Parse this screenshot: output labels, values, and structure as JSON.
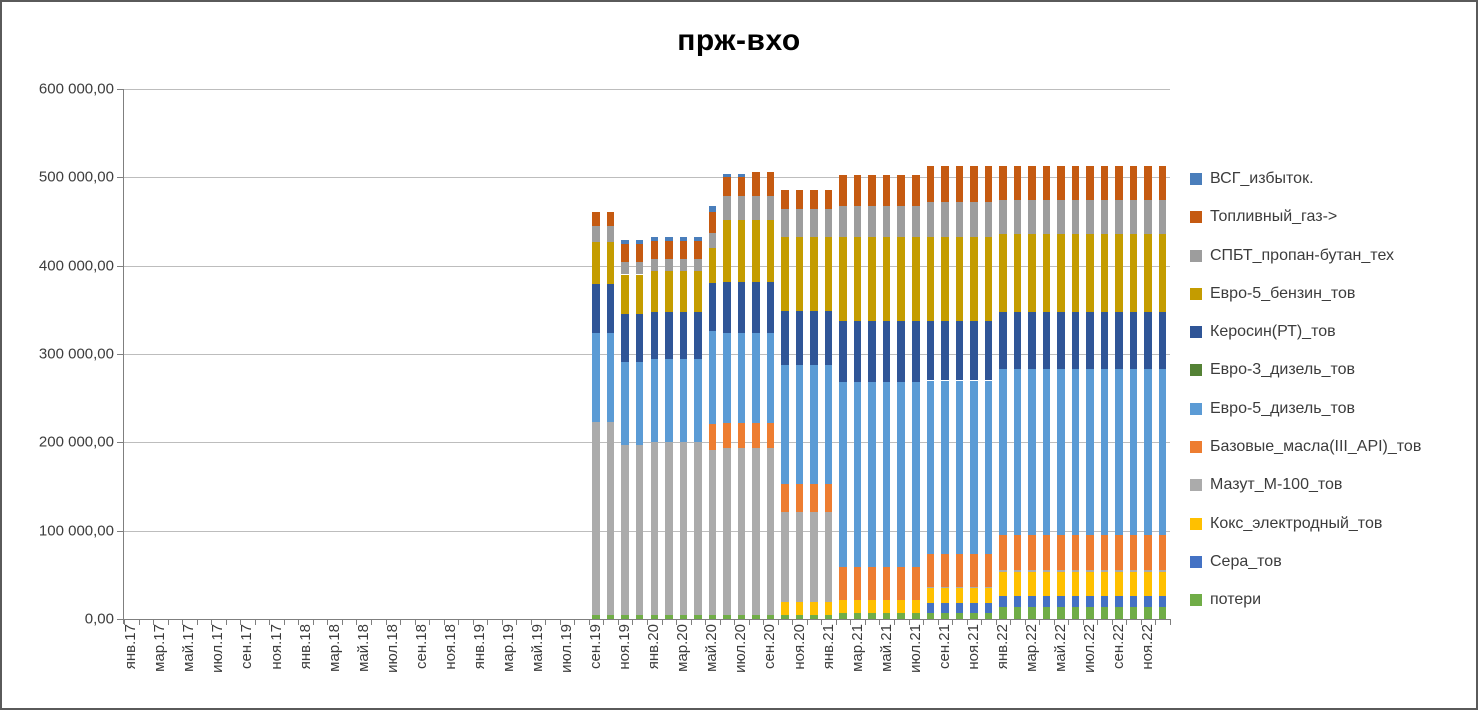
{
  "title": "прж-вхо",
  "y_axis": {
    "labels": [
      "0,00",
      "100 000,00",
      "200 000,00",
      "300 000,00",
      "400 000,00",
      "500 000,00",
      "600 000,00"
    ],
    "values": [
      0,
      100000,
      200000,
      300000,
      400000,
      500000,
      600000
    ],
    "max": 600000
  },
  "x_axis": {
    "tick_labels": [
      "янв.17",
      "мар.17",
      "май.17",
      "июл.17",
      "сен.17",
      "ноя.17",
      "янв.18",
      "мар.18",
      "май.18",
      "июл.18",
      "сен.18",
      "ноя.18",
      "янв.19",
      "мар.19",
      "май.19",
      "июл.19",
      "сен.19",
      "ноя.19",
      "янв.20",
      "мар.20",
      "май.20",
      "июл.20",
      "сен.20",
      "ноя.20",
      "янв.21",
      "мар.21",
      "май.21",
      "июл.21",
      "сен.21",
      "ноя.21",
      "янв.22",
      "мар.22",
      "май.22",
      "июл.22",
      "сен.22",
      "ноя.22"
    ],
    "label_every_n_slots": 2
  },
  "legend": [
    {
      "name": "ВСГ_избыток.",
      "color": "#4a7ebb"
    },
    {
      "name": "Топливный_газ->",
      "color": "#c55a11"
    },
    {
      "name": "СПБТ_пропан-бутан_тех",
      "color": "#9d9d9d"
    },
    {
      "name": "Евро-5_бензин_тов",
      "color": "#c49c00"
    },
    {
      "name": "Керосин(РТ)_тов",
      "color": "#2f5597"
    },
    {
      "name": "Евро-3_дизель_тов",
      "color": "#548235"
    },
    {
      "name": "Евро-5_дизель_тов",
      "color": "#5b9bd5"
    },
    {
      "name": "Базовые_масла(III_API)_тов",
      "color": "#ed7d31"
    },
    {
      "name": "Мазут_М-100_тов",
      "color": "#ababab"
    },
    {
      "name": "Кокс_электродный_тов",
      "color": "#ffc000"
    },
    {
      "name": "Сера_тов",
      "color": "#4472c4"
    },
    {
      "name": "потери",
      "color": "#70ad47"
    }
  ],
  "chart_data": {
    "type": "bar",
    "stacked": true,
    "title": "прж-вхо",
    "xlabel": "",
    "ylabel": "",
    "ylim": [
      0,
      600000
    ],
    "y_tick_step": 100000,
    "grid": true,
    "legend_position": "right",
    "total_slots": 72,
    "slot_range": "янв.17 — дек.22 (monthly)",
    "first_bar_slot_index": 32,
    "bar_months": [
      "сен.19",
      "окт.19",
      "ноя.19",
      "дек.19",
      "янв.20",
      "фев.20",
      "мар.20",
      "апр.20",
      "май.20",
      "июн.20",
      "июл.20",
      "авг.20",
      "сен.20",
      "окт.20",
      "ноя.20",
      "дек.20",
      "янв.21",
      "фев.21",
      "мар.21",
      "апр.21",
      "май.21",
      "июн.21",
      "июл.21",
      "авг.21",
      "сен.21",
      "окт.21",
      "ноя.21",
      "дек.21",
      "янв.22",
      "фев.22",
      "мар.22",
      "апр.22",
      "май.22",
      "июн.22",
      "июл.22",
      "авг.22",
      "сен.22",
      "окт.22",
      "ноя.22",
      "дек.22"
    ],
    "series": [
      {
        "name": "потери",
        "color": "#70ad47",
        "values": [
          5000,
          5000,
          5000,
          5000,
          5000,
          5000,
          5000,
          5000,
          5000,
          5000,
          5000,
          5000,
          5000,
          4000,
          4000,
          4000,
          4000,
          7000,
          7000,
          7000,
          7000,
          7000,
          7000,
          7000,
          7000,
          7000,
          7000,
          7000,
          14000,
          14000,
          14000,
          14000,
          14000,
          14000,
          14000,
          14000,
          14000,
          14000,
          14000,
          14000
        ]
      },
      {
        "name": "Сера_тов",
        "color": "#4472c4",
        "values": [
          0,
          0,
          0,
          0,
          0,
          0,
          0,
          0,
          0,
          0,
          0,
          0,
          0,
          0,
          0,
          0,
          0,
          0,
          0,
          0,
          0,
          0,
          0,
          11000,
          11000,
          11000,
          11000,
          11000,
          12000,
          12000,
          12000,
          12000,
          12000,
          12000,
          12000,
          12000,
          12000,
          12000,
          12000,
          12000
        ]
      },
      {
        "name": "Кокс_электродный_тов",
        "color": "#ffc000",
        "values": [
          0,
          0,
          0,
          0,
          0,
          0,
          0,
          0,
          0,
          0,
          0,
          0,
          0,
          15000,
          15000,
          15000,
          15000,
          15000,
          15000,
          15000,
          15000,
          15000,
          15000,
          17000,
          17000,
          17000,
          17000,
          17000,
          27000,
          27000,
          27000,
          27000,
          27000,
          27000,
          27000,
          27000,
          27000,
          27000,
          27000,
          27000
        ]
      },
      {
        "name": "Мазут_М-100_тов",
        "color": "#ababab",
        "values": [
          218000,
          218000,
          192000,
          192000,
          195000,
          195000,
          195000,
          195000,
          186000,
          189000,
          189000,
          189000,
          189000,
          102000,
          102000,
          102000,
          102000,
          0,
          0,
          0,
          0,
          0,
          0,
          1000,
          1000,
          1000,
          1000,
          1000,
          2000,
          2000,
          2000,
          2000,
          2000,
          2000,
          2000,
          2000,
          2000,
          2000,
          2000,
          2000
        ]
      },
      {
        "name": "Базовые_масла(III_API)_тов",
        "color": "#ed7d31",
        "values": [
          0,
          0,
          0,
          0,
          0,
          0,
          0,
          0,
          30000,
          28000,
          28000,
          28000,
          28000,
          32000,
          32000,
          32000,
          32000,
          37000,
          37000,
          37000,
          37000,
          37000,
          37000,
          38000,
          38000,
          38000,
          38000,
          38000,
          40000,
          40000,
          40000,
          40000,
          40000,
          40000,
          40000,
          40000,
          40000,
          40000,
          40000,
          40000
        ]
      },
      {
        "name": "Евро-5_дизель_тов",
        "color": "#5b9bd5",
        "values": [
          101000,
          101000,
          94000,
          94000,
          94000,
          94000,
          94000,
          94000,
          105000,
          102000,
          102000,
          102000,
          102000,
          134000,
          134000,
          134000,
          134000,
          209000,
          209000,
          209000,
          209000,
          209000,
          209000,
          196000,
          196000,
          196000,
          196000,
          196000,
          188000,
          188000,
          188000,
          188000,
          188000,
          188000,
          188000,
          188000,
          188000,
          188000,
          188000,
          188000
        ]
      },
      {
        "name": "Евро-3_дизель_тов",
        "color": "#548235",
        "values": [
          0,
          0,
          0,
          0,
          0,
          0,
          0,
          0,
          0,
          0,
          0,
          0,
          0,
          0,
          0,
          0,
          0,
          0,
          0,
          0,
          0,
          0,
          0,
          0,
          0,
          0,
          0,
          0,
          0,
          0,
          0,
          0,
          0,
          0,
          0,
          0,
          0,
          0,
          0,
          0
        ]
      },
      {
        "name": "Керосин(РТ)_тов",
        "color": "#2f5597",
        "values": [
          55000,
          55000,
          54000,
          54000,
          54000,
          54000,
          54000,
          54000,
          54000,
          57000,
          57000,
          57000,
          57000,
          62000,
          62000,
          62000,
          62000,
          69000,
          69000,
          69000,
          69000,
          69000,
          69000,
          67000,
          67000,
          67000,
          67000,
          67000,
          65000,
          65000,
          65000,
          65000,
          65000,
          65000,
          65000,
          65000,
          65000,
          65000,
          65000,
          65000
        ]
      },
      {
        "name": "Евро-5_бензин_тов",
        "color": "#c49c00",
        "values": [
          48000,
          48000,
          45000,
          45000,
          46000,
          46000,
          46000,
          46000,
          40000,
          71000,
          71000,
          71000,
          71000,
          83000,
          83000,
          83000,
          83000,
          95000,
          95000,
          95000,
          95000,
          95000,
          95000,
          95000,
          95000,
          95000,
          95000,
          95000,
          88000,
          88000,
          88000,
          88000,
          88000,
          88000,
          88000,
          88000,
          88000,
          88000,
          88000,
          88000
        ]
      },
      {
        "name": "СПБТ_пропан-бутан_тех",
        "color": "#9d9d9d",
        "values": [
          18000,
          18000,
          14000,
          14000,
          14000,
          14000,
          14000,
          14000,
          17000,
          27000,
          27000,
          27000,
          27000,
          32000,
          32000,
          32000,
          32000,
          36000,
          36000,
          36000,
          36000,
          36000,
          36000,
          40000,
          40000,
          40000,
          40000,
          40000,
          38000,
          38000,
          38000,
          38000,
          38000,
          38000,
          38000,
          38000,
          38000,
          38000,
          38000,
          38000
        ]
      },
      {
        "name": "Топливный_газ->",
        "color": "#c55a11",
        "values": [
          16000,
          16000,
          20000,
          20000,
          20000,
          20000,
          20000,
          20000,
          24000,
          21000,
          21000,
          27000,
          27000,
          22000,
          22000,
          22000,
          22000,
          35000,
          35000,
          35000,
          35000,
          35000,
          35000,
          41000,
          41000,
          41000,
          41000,
          41000,
          39000,
          39000,
          39000,
          39000,
          39000,
          39000,
          39000,
          39000,
          39000,
          39000,
          39000,
          39000
        ]
      },
      {
        "name": "ВСГ_избыток.",
        "color": "#4a7ebb",
        "values": [
          0,
          0,
          5000,
          5000,
          5000,
          5000,
          5000,
          5000,
          6000,
          4000,
          4000,
          0,
          0,
          0,
          0,
          0,
          0,
          0,
          0,
          0,
          0,
          0,
          0,
          0,
          0,
          0,
          0,
          0,
          0,
          0,
          0,
          0,
          0,
          0,
          0,
          0,
          0,
          0,
          0,
          0
        ]
      }
    ]
  }
}
